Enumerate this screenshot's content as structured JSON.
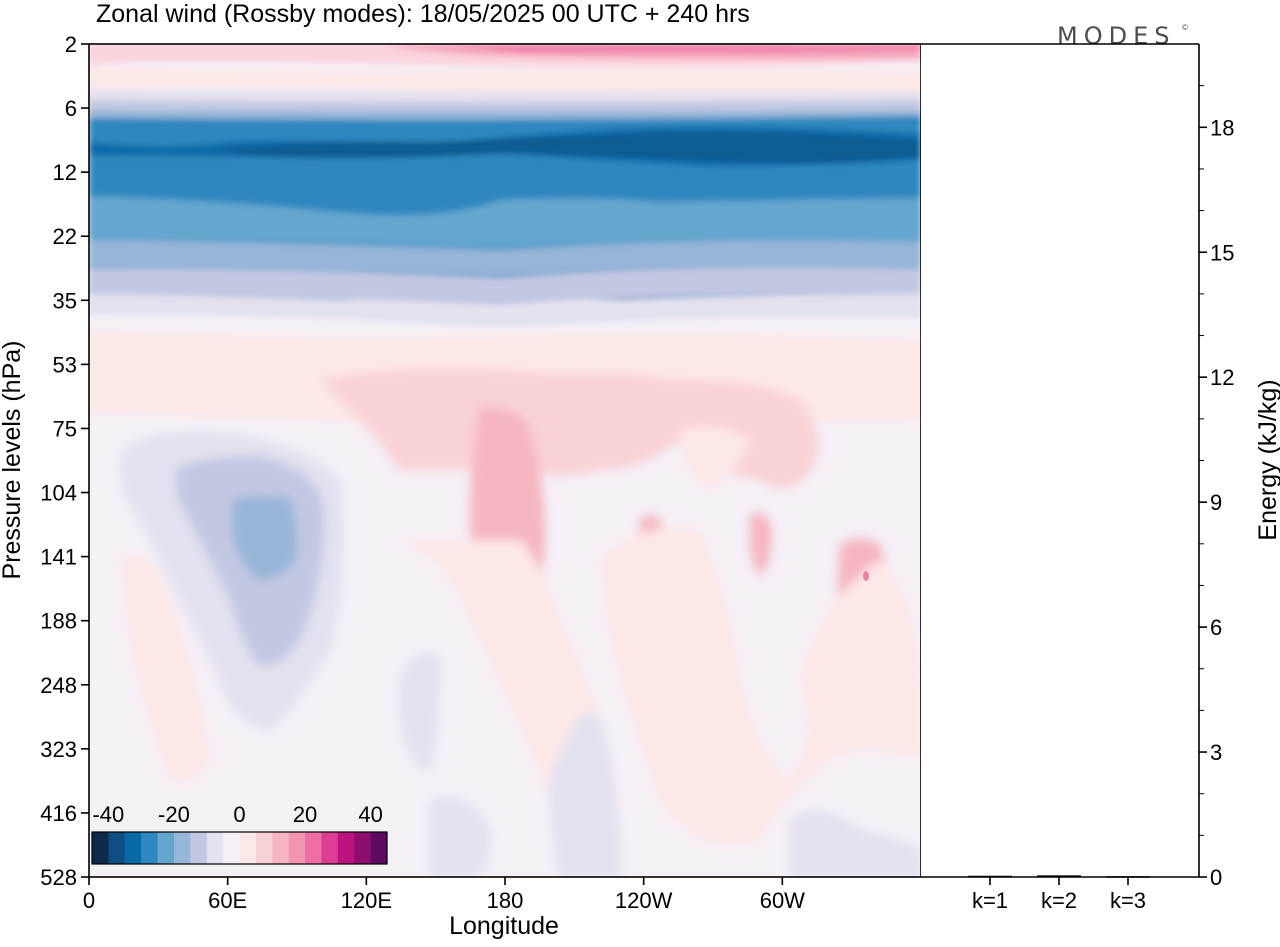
{
  "chart_data": [
    {
      "type": "heatmap",
      "title": "Zonal wind (Rossby modes):  18/05/2025  00 UTC  + 240 hrs",
      "xlabel": "Longitude",
      "ylabel": "Pressure levels (hPa)",
      "x_ticks": [
        "0",
        "60E",
        "120E",
        "180",
        "120W",
        "60W"
      ],
      "x_tick_degrees": [
        0,
        60,
        120,
        180,
        240,
        300
      ],
      "x_range": [
        0,
        360
      ],
      "y_ticks": [
        2,
        6,
        12,
        22,
        35,
        53,
        75,
        104,
        141,
        188,
        248,
        323,
        416,
        528
      ],
      "y_scale": "model levels (equally spaced labels)",
      "colorbar": {
        "tick_labels": [
          "-40",
          "-20",
          "0",
          "20",
          "40"
        ],
        "tick_values": [
          -40,
          -20,
          0,
          20,
          40
        ],
        "levels": [
          -45,
          -40,
          -35,
          -30,
          -25,
          -20,
          -15,
          -10,
          -5,
          0,
          5,
          10,
          15,
          20,
          25,
          30,
          35,
          40,
          45
        ],
        "colors": [
          "#0d2a4a",
          "#0f4d82",
          "#0a6aa8",
          "#2f88bf",
          "#64a6ce",
          "#96b5d8",
          "#c3c8e2",
          "#e2e1ef",
          "#f5eff6",
          "#fde8e8",
          "#f9d2d5",
          "#f6b6c0",
          "#f296b0",
          "#ee6fa2",
          "#dd3d92",
          "#bc137e",
          "#8f0c70",
          "#5e0a60"
        ],
        "placement": "bottom-left inside plot"
      },
      "field_summary": [
        {
          "pressure_hPa": 2,
          "wind_ms": 12,
          "note": "stronger near 120W-0"
        },
        {
          "pressure_hPa": 6,
          "wind_ms": -20
        },
        {
          "pressure_hPa": 9,
          "wind_ms": -33,
          "note": "core, deepest near 60W"
        },
        {
          "pressure_hPa": 14,
          "wind_ms": -27
        },
        {
          "pressure_hPa": 22,
          "wind_ms": -17
        },
        {
          "pressure_hPa": 35,
          "wind_ms": -8
        },
        {
          "pressure_hPa": 53,
          "wind_ms": 3
        },
        {
          "pressure_hPa": 141,
          "wind_ms": -15,
          "note": "negative cell near 70E"
        },
        {
          "pressure_hPa": 141,
          "wind_ms": 12,
          "note": "positive cells near 180, 150W, 110W, 45W"
        },
        {
          "pressure_hPa": 416,
          "wind_ms": -5,
          "note": "weak negative near 140W and 330E"
        }
      ]
    },
    {
      "type": "bar",
      "categories": [
        "k=1",
        "k=2",
        "k=3"
      ],
      "values": [
        0.03,
        0.04,
        0.02
      ],
      "ylabel": "Energy (kJ/kg)",
      "y_ticks": [
        "0",
        "3",
        "6",
        "9",
        "12",
        "15",
        "18"
      ],
      "ylim": [
        0,
        20
      ]
    }
  ],
  "logo": {
    "text": "MODES",
    "mark": "©"
  },
  "colors": {
    "frame": "#000000",
    "background": "#ffffff",
    "logo": "#4d4d4d",
    "bars": "#000000"
  }
}
